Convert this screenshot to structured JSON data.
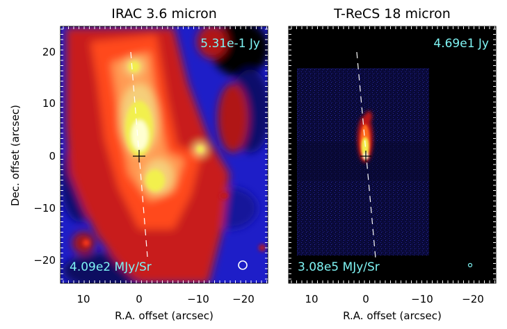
{
  "panels": [
    {
      "title": "IRAC 3.6 micron",
      "flux": "5.31e-1 Jy",
      "scale": "4.09e2 MJy/Sr",
      "xlabel": "R.A. offset (arcsec)",
      "ylabel": "Dec. offset (arcsec)",
      "xticks": [
        "10",
        "0",
        "−10",
        "−20"
      ],
      "yticks": [
        "20",
        "10",
        "0",
        "−10",
        "−20"
      ]
    },
    {
      "title": "T-ReCS 18 micron",
      "flux": "4.69e1 Jy",
      "scale": "3.08e5 MJy/Sr",
      "xlabel": "R.A. offset (arcsec)",
      "xticks": [
        "10",
        "0",
        "−10",
        "−20"
      ]
    }
  ],
  "colors": {
    "annotation": "#7ff4f4",
    "colormap": [
      "#000000",
      "#1a1aa0",
      "#2e2ee0",
      "#c01818",
      "#ff4a1a",
      "#ff9a52",
      "#f5cf7a",
      "#f2f04e",
      "#ffffd0"
    ]
  }
}
